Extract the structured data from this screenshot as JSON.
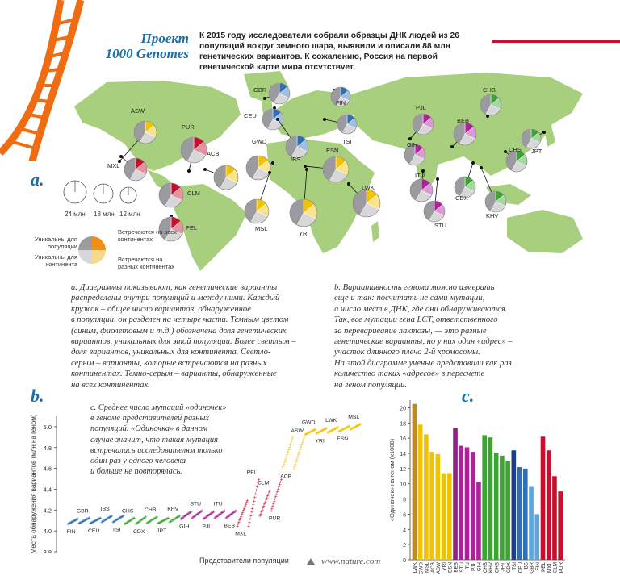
{
  "header": {
    "title_line1": "Проект",
    "title_line2": "1000 Genomes",
    "intro": "К 2015 году исследователи собрали образцы ДНК людей из 26 популяций вокруг земного шара, выявили и описали 88 млн генетических вариантов. К сожалению, Россия на первой генетической карте мира отсутствует."
  },
  "colors": {
    "map_land": "#a7cf7e",
    "map_bg": "#ffffff",
    "dna_orange": "#ef6c12",
    "brand_blue": "#1a6fa8",
    "accent_red": "#c8102e",
    "gray_light": "#d7d7d9",
    "gray_dark": "#9b9b9f"
  },
  "panel_a": {
    "letter": "a.",
    "caption": "а. Диаграммы показывают, как генетические варианты\nраспределены внутри популяций и между ними. Каждый\nкружок  –  общее число вариантов, обнаруженное\nв популяции, он разделен на четыре части. Темным цветом\n(синим, фиолетовым и т.д.) обозначена доля генетических\nвариантов, уникальных для этой популяции. Более светлым –\nдоля вариантов, уникальных для континента. Светло-\nсерым  –  варианты, которые встречаются на разных\nконтинентах. Темно-серым  –  варианты, обнаруженные\nна всех континентах.",
    "size_legend": [
      "24 млн",
      "18 млн",
      "12 млн"
    ],
    "legend": {
      "unique_pop": "Уникальны для популяции",
      "unique_cont": "Уникальны для континента",
      "all_cont": "Встречаются на всех континентах",
      "some_cont": "Встречаются на разных континентах"
    },
    "populations": [
      {
        "code": "ASW",
        "color": "#f2c200"
      },
      {
        "code": "PUR",
        "color": "#c8102e"
      },
      {
        "code": "ACB",
        "color": "#f2c200"
      },
      {
        "code": "MXL",
        "color": "#c8102e"
      },
      {
        "code": "CLM",
        "color": "#c8102e"
      },
      {
        "code": "PEL",
        "color": "#c8102e"
      },
      {
        "code": "GBR",
        "color": "#2e6fb5"
      },
      {
        "code": "CEU",
        "color": "#2e6fb5"
      },
      {
        "code": "FIN",
        "color": "#2e6fb5"
      },
      {
        "code": "TSI",
        "color": "#2e6fb5"
      },
      {
        "code": "IBS",
        "color": "#2e6fb5"
      },
      {
        "code": "GWD",
        "color": "#f2c200"
      },
      {
        "code": "ESN",
        "color": "#f2c200"
      },
      {
        "code": "MSL",
        "color": "#f2c200"
      },
      {
        "code": "YRI",
        "color": "#f2c200"
      },
      {
        "code": "LWK",
        "color": "#f2c200"
      },
      {
        "code": "PJL",
        "color": "#b0209a"
      },
      {
        "code": "GIH",
        "color": "#b0209a"
      },
      {
        "code": "ITU",
        "color": "#b0209a"
      },
      {
        "code": "STU",
        "color": "#b0209a"
      },
      {
        "code": "BEB",
        "color": "#b0209a"
      },
      {
        "code": "CHB",
        "color": "#3aa632"
      },
      {
        "code": "CHS",
        "color": "#3aa632"
      },
      {
        "code": "JPT",
        "color": "#3aa632"
      },
      {
        "code": "CDX",
        "color": "#3aa632"
      },
      {
        "code": "KHV",
        "color": "#3aa632"
      }
    ]
  },
  "panel_b": {
    "letter": "b.",
    "caption": "b. Вариативность генома можно измерить\nеще и так: посчитать не сами мутации,\nа число мест в ДНК, где они обнаруживаются.\nТак, все мутации гена LCT, ответственного\nза переваривание  лактозы,  —  это разные\nгенетические варианты, но у них один «адрес»  –\nучасток длинного плеча 2-й хромосомы.\nНа этой диаграмме ученые представили как раз\nколичество таких «адресов» в пересчете\nна геном популяции.",
    "ylabel": "Места обнаружения вариантов (млн на геном)",
    "xlabel": "Представители популяции",
    "site": "www.nature.com"
  },
  "panel_c": {
    "letter": "c.",
    "caption": "c. Среднее число мутаций «одиночек»\nв геноме представителей разных\nпопуляций. «Одиночка» в данном\nслучае значит, что такая мутация\nвстречалась исследователям только\nодин раз у одного человека\nи больше не повторялась."
  },
  "chart_data": [
    {
      "type": "scatter",
      "ylabel": "Места обнаружения вариантов (млн на геном)",
      "xlabel": "Представители популяции",
      "ylim": [
        3.8,
        5.1
      ],
      "yticks": [
        3.8,
        4.0,
        4.2,
        4.4,
        4.6,
        4.8,
        5.0
      ],
      "series": [
        {
          "name": "FIN",
          "color": "#2e6fb5",
          "values": [
            4.07,
            4.12
          ]
        },
        {
          "name": "GBR",
          "color": "#2e6fb5",
          "values": [
            4.08,
            4.13
          ]
        },
        {
          "name": "CEU",
          "color": "#2e6fb5",
          "values": [
            4.08,
            4.13
          ]
        },
        {
          "name": "IBS",
          "color": "#2e6fb5",
          "values": [
            4.09,
            4.15
          ]
        },
        {
          "name": "TSI",
          "color": "#2e6fb5",
          "values": [
            4.09,
            4.15
          ]
        },
        {
          "name": "CHS",
          "color": "#3aa632",
          "values": [
            4.07,
            4.13
          ]
        },
        {
          "name": "CDX",
          "color": "#3aa632",
          "values": [
            4.07,
            4.14
          ]
        },
        {
          "name": "CHB",
          "color": "#3aa632",
          "values": [
            4.08,
            4.14
          ]
        },
        {
          "name": "JPT",
          "color": "#3aa632",
          "values": [
            4.08,
            4.13
          ]
        },
        {
          "name": "KHV",
          "color": "#3aa632",
          "values": [
            4.09,
            4.15
          ]
        },
        {
          "name": "GIH",
          "color": "#b0209a",
          "values": [
            4.12,
            4.19
          ]
        },
        {
          "name": "STU",
          "color": "#b0209a",
          "values": [
            4.13,
            4.2
          ]
        },
        {
          "name": "PJL",
          "color": "#b0209a",
          "values": [
            4.12,
            4.19
          ]
        },
        {
          "name": "ITU",
          "color": "#b0209a",
          "values": [
            4.13,
            4.2
          ]
        },
        {
          "name": "BEB",
          "color": "#b0209a",
          "values": [
            4.13,
            4.2
          ]
        },
        {
          "name": "MXL",
          "color": "#c8102e",
          "values": [
            4.05,
            4.3
          ]
        },
        {
          "name": "PEL",
          "color": "#c8102e",
          "values": [
            4.05,
            4.5
          ]
        },
        {
          "name": "CLM",
          "color": "#c8102e",
          "values": [
            4.15,
            4.4
          ]
        },
        {
          "name": "PUR",
          "color": "#c8102e",
          "values": [
            4.2,
            4.5
          ]
        },
        {
          "name": "ACB",
          "color": "#f2c200",
          "values": [
            4.6,
            4.9
          ]
        },
        {
          "name": "ASW",
          "color": "#f2c200",
          "values": [
            4.6,
            4.9
          ]
        },
        {
          "name": "GWD",
          "color": "#f2c200",
          "values": [
            4.93,
            4.98
          ]
        },
        {
          "name": "YRI",
          "color": "#f2c200",
          "values": [
            4.94,
            4.99
          ]
        },
        {
          "name": "LWK",
          "color": "#f2c200",
          "values": [
            4.95,
            5.0
          ]
        },
        {
          "name": "ESN",
          "color": "#f2c200",
          "values": [
            4.96,
            5.01
          ]
        },
        {
          "name": "MSL",
          "color": "#f2c200",
          "values": [
            4.98,
            5.03
          ]
        }
      ],
      "labels": [
        {
          "name": "FIN",
          "pos": "below"
        },
        {
          "name": "GBR",
          "pos": "above"
        },
        {
          "name": "CEU",
          "pos": "below"
        },
        {
          "name": "IBS",
          "pos": "above"
        },
        {
          "name": "TSI",
          "pos": "below"
        },
        {
          "name": "CHS",
          "pos": "above"
        },
        {
          "name": "CDX",
          "pos": "below"
        },
        {
          "name": "CHB",
          "pos": "above"
        },
        {
          "name": "JPT",
          "pos": "below"
        },
        {
          "name": "KHV",
          "pos": "above"
        },
        {
          "name": "GIH",
          "pos": "below"
        },
        {
          "name": "STU",
          "pos": "above"
        },
        {
          "name": "PJL",
          "pos": "below"
        },
        {
          "name": "ITU",
          "pos": "above"
        },
        {
          "name": "BEB",
          "pos": "below"
        },
        {
          "name": "MXL",
          "pos": "below"
        },
        {
          "name": "PEL",
          "pos": "above"
        },
        {
          "name": "CLM",
          "pos": "above"
        },
        {
          "name": "PUR",
          "pos": "below"
        },
        {
          "name": "ACB",
          "pos": "below"
        },
        {
          "name": "ASW",
          "pos": "above"
        },
        {
          "name": "GWD",
          "pos": "above"
        },
        {
          "name": "YRI",
          "pos": "below"
        },
        {
          "name": "LWK",
          "pos": "above"
        },
        {
          "name": "ESN",
          "pos": "below"
        },
        {
          "name": "MSL",
          "pos": "above"
        }
      ]
    },
    {
      "type": "bar",
      "ylabel": "«Одиночек» на геном (x1000)",
      "ylim": [
        0,
        21
      ],
      "yticks": [
        0,
        2,
        4,
        6,
        8,
        10,
        12,
        14,
        16,
        18,
        20
      ],
      "categories": [
        "LWK",
        "GWD",
        "MSL",
        "ACB",
        "ASW",
        "YRI",
        "ESN",
        "BEB",
        "STU",
        "ITU",
        "PJL",
        "GIH",
        "CHB",
        "KHV",
        "CHS",
        "JPT",
        "CDX",
        "TSI",
        "CEU",
        "IBS",
        "GBR",
        "FIN",
        "PEL",
        "MXL",
        "CLM",
        "PUR"
      ],
      "values": [
        20.5,
        17.8,
        16.5,
        14.2,
        13.9,
        11.4,
        11.4,
        17.3,
        15.0,
        14.8,
        14.2,
        10.2,
        16.4,
        16.1,
        14.1,
        13.7,
        13.0,
        14.4,
        12.2,
        12.0,
        9.6,
        6.0,
        16.2,
        14.4,
        11.0,
        9.0
      ],
      "colors": [
        "#c08a1e",
        "#f2c200",
        "#f2c200",
        "#f2c200",
        "#f2c200",
        "#f2c200",
        "#f2c200",
        "#8f1f8a",
        "#b0209a",
        "#b0209a",
        "#b0209a",
        "#b0209a",
        "#3aa632",
        "#3aa632",
        "#3aa632",
        "#3aa632",
        "#3aa632",
        "#1f3e8a",
        "#2e6fb5",
        "#2e6fb5",
        "#5aa6dd",
        "#5aa6dd",
        "#c8102e",
        "#c8102e",
        "#c8102e",
        "#c8102e"
      ]
    }
  ]
}
